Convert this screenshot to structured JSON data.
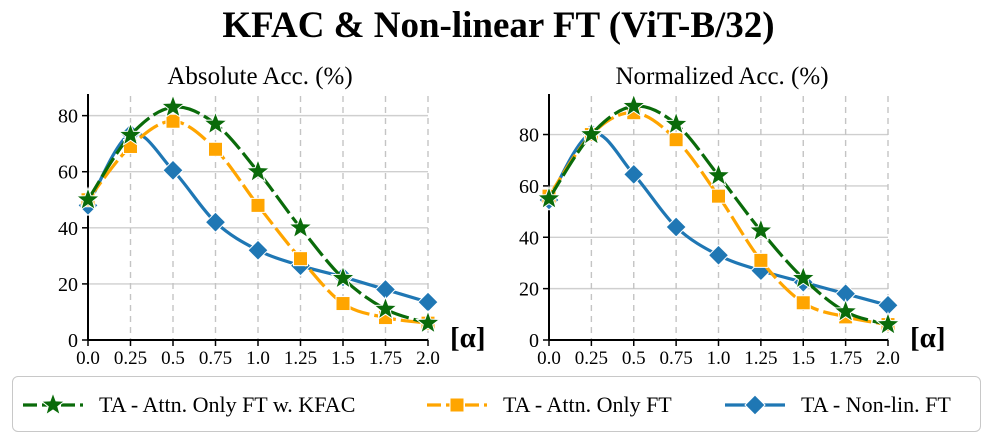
{
  "title": "KFAC & Non-linear FT (ViT-B/32)",
  "legend": [
    {
      "label": "TA - Attn. Only FT w. KFAC",
      "color": "#0a6b0a",
      "marker": "star"
    },
    {
      "label": "TA - Attn. Only FT",
      "color": "#ffa500",
      "marker": "square"
    },
    {
      "label": "TA - Non-lin. FT",
      "color": "#1f77b4",
      "marker": "diamond"
    }
  ],
  "chart_data": [
    {
      "type": "line",
      "title": "Absolute Acc. (%)",
      "xlabel": "[α]",
      "ylabel": "",
      "x": [
        0.0,
        0.25,
        0.5,
        0.75,
        1.0,
        1.25,
        1.5,
        1.75,
        2.0
      ],
      "x_ticks": [
        "0.0",
        "0.25",
        "0.5",
        "0.75",
        "1.0",
        "1.25",
        "1.5",
        "1.75",
        "2.0"
      ],
      "y_ticks": [
        0,
        20,
        40,
        60,
        80
      ],
      "xlim": [
        0,
        2.0
      ],
      "ylim": [
        0,
        87
      ],
      "grid": true,
      "series": [
        {
          "name": "TA - Attn. Only FT w. KFAC",
          "values": [
            50,
            73,
            83,
            77,
            60,
            40,
            22,
            11,
            6
          ]
        },
        {
          "name": "TA - Attn. Only FT",
          "values": [
            50,
            69,
            78,
            68,
            48,
            29,
            13,
            8,
            6
          ]
        },
        {
          "name": "TA - Non-lin. FT",
          "values": [
            48,
            73.5,
            60.5,
            42,
            32,
            26.5,
            22.5,
            18,
            13.5
          ]
        }
      ]
    },
    {
      "type": "line",
      "title": "Normalized Acc. (%)",
      "xlabel": "[α]",
      "ylabel": "",
      "x": [
        0.0,
        0.25,
        0.5,
        0.75,
        1.0,
        1.25,
        1.5,
        1.75,
        2.0
      ],
      "x_ticks": [
        "0.0",
        "0.25",
        "0.5",
        "0.75",
        "1.0",
        "1.25",
        "1.5",
        "1.75",
        "2.0"
      ],
      "y_ticks": [
        0,
        20,
        40,
        60,
        80
      ],
      "xlim": [
        0,
        2.0
      ],
      "ylim": [
        0,
        95
      ],
      "grid": true,
      "series": [
        {
          "name": "TA - Attn. Only FT w. KFAC",
          "values": [
            55,
            80,
            91,
            84,
            64,
            42.5,
            24,
            11,
            6
          ]
        },
        {
          "name": "TA - Attn. Only FT",
          "values": [
            56,
            80,
            88.5,
            78,
            56,
            31,
            14.5,
            9,
            6
          ]
        },
        {
          "name": "TA - Non-lin. FT",
          "values": [
            54.5,
            80.5,
            64.5,
            44,
            33,
            27,
            22.5,
            18,
            13.5
          ]
        }
      ]
    }
  ]
}
